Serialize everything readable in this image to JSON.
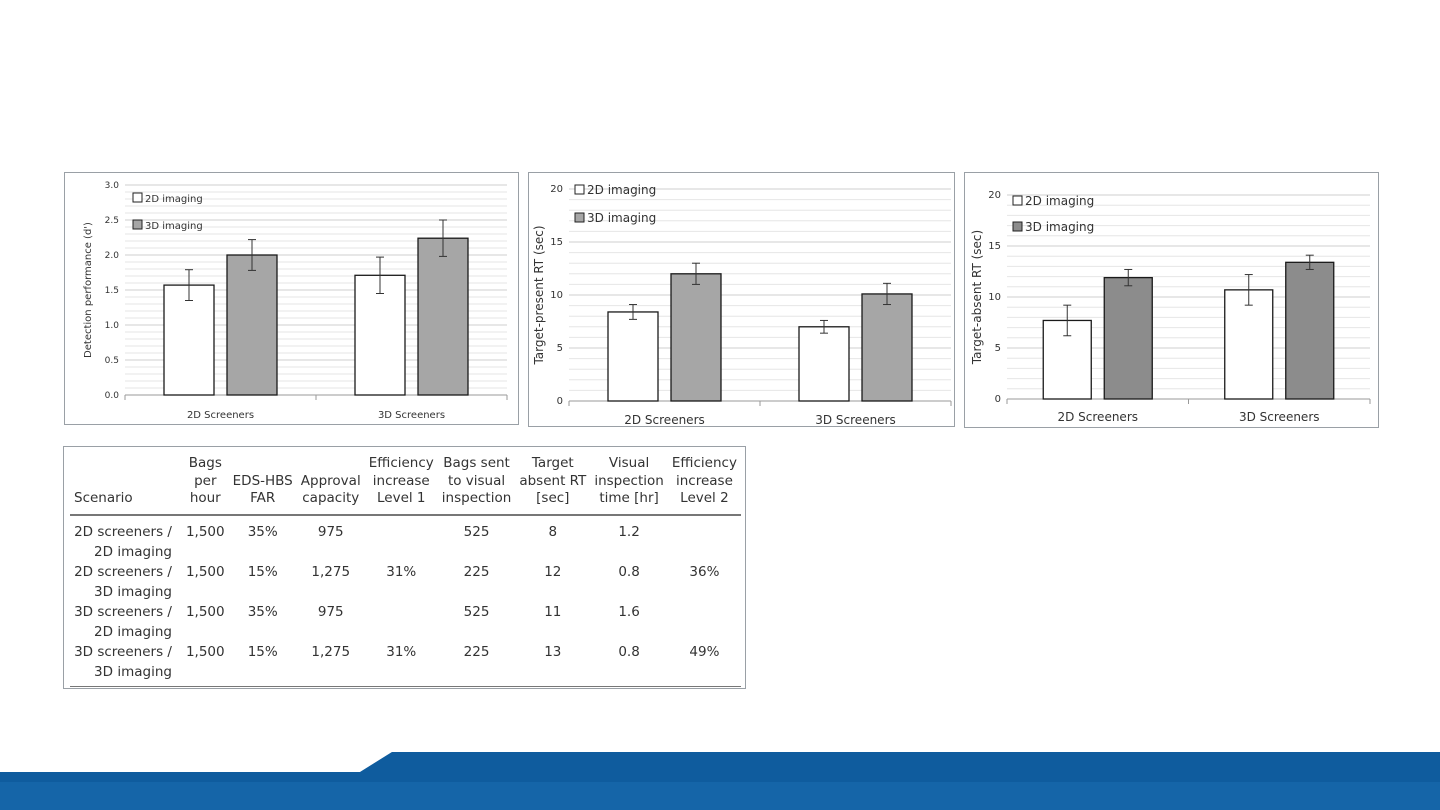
{
  "colors": {
    "bar_2d": "#ffffff",
    "bar_3d_light": "#a6a6a6",
    "bar_3d_dark": "#8c8c8c",
    "footer_dark": "#0b4f8a",
    "footer_light": "#1565a8"
  },
  "chart_data": [
    {
      "type": "bar",
      "categories": [
        "2D Screeners",
        "3D Screeners"
      ],
      "ylabel": "Detection performance (d')",
      "ylim": [
        0,
        3
      ],
      "ytick_step": 0.5,
      "ytick_decimals": 1,
      "grid": true,
      "legend_position": "top-left",
      "series": [
        {
          "name": "2D imaging",
          "values": [
            1.57,
            1.71
          ],
          "errors": [
            0.22,
            0.26
          ],
          "color": "#ffffff"
        },
        {
          "name": "3D imaging",
          "values": [
            2.0,
            2.24
          ],
          "errors": [
            0.22,
            0.26
          ],
          "color": "#a6a6a6"
        }
      ]
    },
    {
      "type": "bar",
      "categories": [
        "2D Screeners",
        "3D Screeners"
      ],
      "ylabel": "Target-present RT (sec)",
      "ylim": [
        0,
        20
      ],
      "ytick_step": 5,
      "ytick_decimals": 0,
      "grid": true,
      "legend_position": "top-left",
      "series": [
        {
          "name": "2D imaging",
          "values": [
            8.4,
            7.0
          ],
          "errors": [
            0.7,
            0.6
          ],
          "color": "#ffffff"
        },
        {
          "name": "3D imaging",
          "values": [
            12.0,
            10.1
          ],
          "errors": [
            1.0,
            1.0
          ],
          "color": "#a6a6a6"
        }
      ]
    },
    {
      "type": "bar",
      "categories": [
        "2D Screeners",
        "3D Screeners"
      ],
      "ylabel": "Target-absent RT (sec)",
      "ylim": [
        0,
        20
      ],
      "ytick_step": 5,
      "ytick_decimals": 0,
      "grid": true,
      "legend_position": "top-left",
      "series": [
        {
          "name": "2D imaging",
          "values": [
            7.7,
            10.7
          ],
          "errors": [
            1.5,
            1.5
          ],
          "color": "#ffffff"
        },
        {
          "name": "3D imaging",
          "values": [
            11.9,
            13.4
          ],
          "errors": [
            0.8,
            0.7
          ],
          "color": "#8c8c8c"
        }
      ]
    }
  ],
  "table": {
    "headers": [
      "Scenario",
      "Bags\nper\nhour",
      "EDS-HBS\nFAR",
      "Approval\ncapacity",
      "Efficiency\nincrease\nLevel 1",
      "Bags sent\nto visual\ninspection",
      "Target\nabsent RT\n[sec]",
      "Visual\ninspection\ntime [hr]",
      "Efficiency\nincrease\nLevel 2"
    ],
    "rows": [
      [
        "2D screeners /\n2D imaging",
        "1,500",
        "35%",
        "975",
        "",
        "525",
        "8",
        "1.2",
        ""
      ],
      [
        "2D screeners /\n3D imaging",
        "1,500",
        "15%",
        "1,275",
        "31%",
        "225",
        "12",
        "0.8",
        "36%"
      ],
      [
        "3D screeners /\n2D imaging",
        "1,500",
        "35%",
        "975",
        "",
        "525",
        "11",
        "1.6",
        ""
      ],
      [
        "3D screeners /\n3D imaging",
        "1,500",
        "15%",
        "1,275",
        "31%",
        "225",
        "13",
        "0.8",
        "49%"
      ]
    ]
  }
}
